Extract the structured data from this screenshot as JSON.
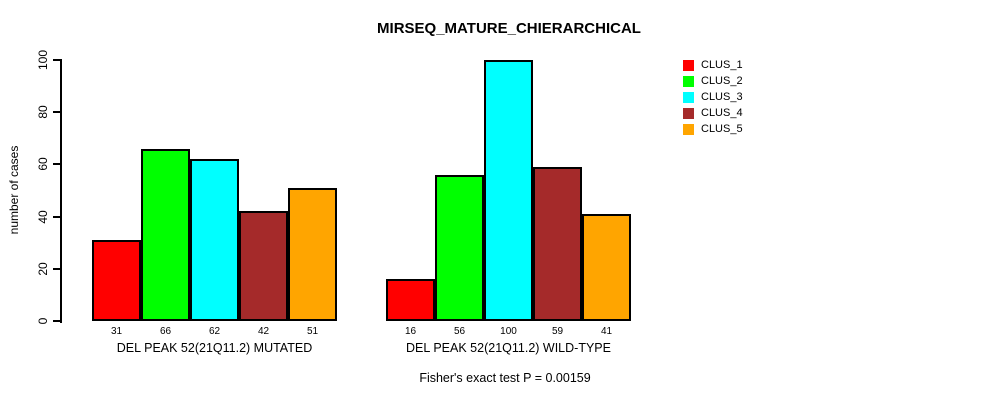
{
  "chart_data": {
    "type": "bar",
    "title": "MIRSEQ_MATURE_CHIERARCHICAL",
    "ylabel": "number of cases",
    "xlabel": "",
    "ylim": [
      0,
      100
    ],
    "yticks": [
      0,
      20,
      40,
      60,
      80,
      100
    ],
    "grid": false,
    "legend_position": "right",
    "series": [
      {
        "name": "CLUS_1",
        "color": "#ff0000"
      },
      {
        "name": "CLUS_2",
        "color": "#00ff00"
      },
      {
        "name": "CLUS_3",
        "color": "#00ffff"
      },
      {
        "name": "CLUS_4",
        "color": "#a52a2a"
      },
      {
        "name": "CLUS_5",
        "color": "#ffa500"
      }
    ],
    "groups": [
      {
        "label": "DEL PEAK 52(21Q11.2) MUTATED",
        "values": [
          31,
          66,
          62,
          42,
          51
        ]
      },
      {
        "label": "DEL PEAK 52(21Q11.2) WILD-TYPE",
        "values": [
          16,
          56,
          100,
          59,
          41
        ]
      }
    ],
    "subtitle": "Fisher's exact test P = 0.00159"
  }
}
